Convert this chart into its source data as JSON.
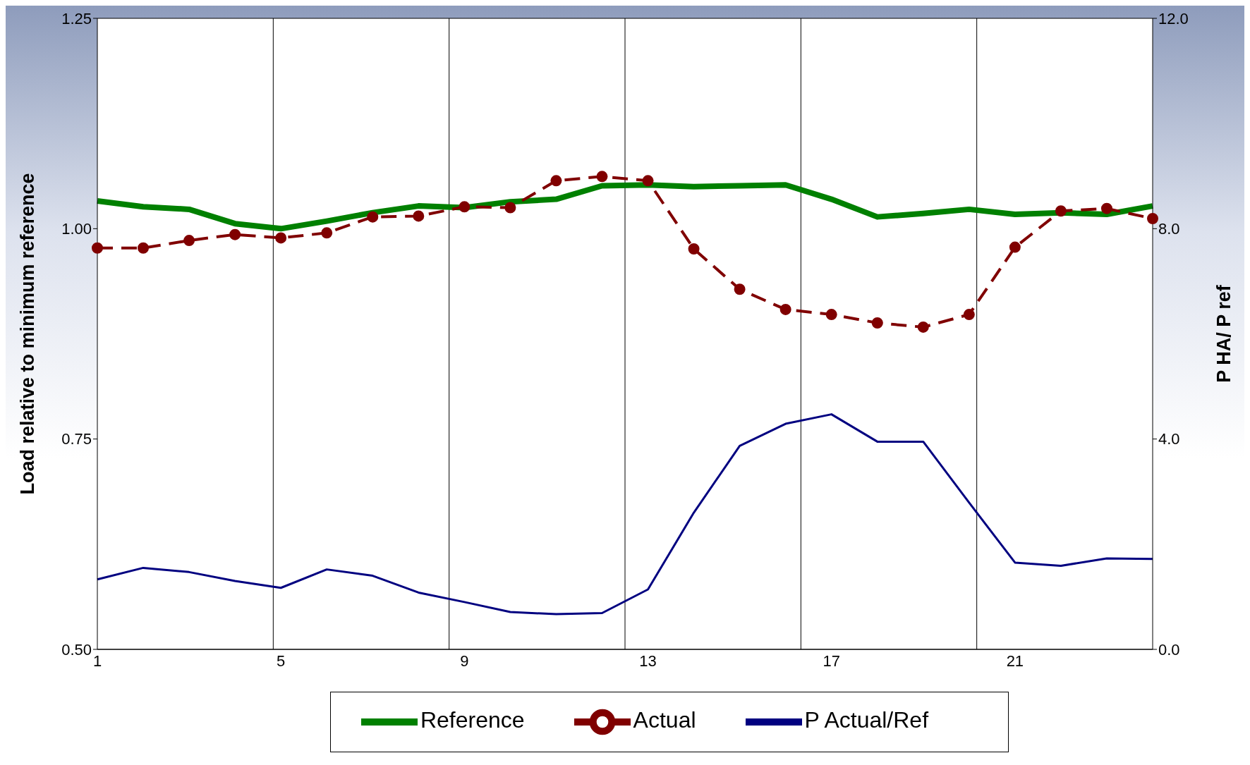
{
  "chart_data": {
    "type": "line",
    "ylabel": "Load relative to minimum reference",
    "y2label": "P HA/ P ref",
    "categories": [
      "1",
      null,
      null,
      null,
      "5",
      null,
      null,
      null,
      "9",
      null,
      null,
      null,
      "13",
      null,
      null,
      null,
      "17",
      null,
      null,
      null,
      "21",
      null,
      null,
      null
    ],
    "series": [
      {
        "name": "Reference",
        "color": "#008000",
        "marker": "none",
        "line_style": "solid",
        "values": [
          1.033,
          1.026,
          1.023,
          1.006,
          1.0,
          1.009,
          1.019,
          1.027,
          1.025,
          1.032,
          1.035,
          1.051,
          1.052,
          1.05,
          1.051,
          1.052,
          1.035,
          1.014,
          1.018,
          1.023,
          1.017,
          1.019,
          1.017,
          1.027
        ]
      },
      {
        "name": "Actual",
        "color": "#800000",
        "marker": "circle",
        "line_style": "dashed",
        "values": [
          0.977,
          0.977,
          0.986,
          0.993,
          0.989,
          0.995,
          1.014,
          1.015,
          1.026,
          1.025,
          1.057,
          1.062,
          1.057,
          0.976,
          0.928,
          0.904,
          0.898,
          0.888,
          0.883,
          0.898,
          0.978,
          1.021,
          1.024,
          1.012
        ]
      },
      {
        "name": "P Actual/Ref",
        "color": "#000080",
        "marker": "none",
        "line_style": "solid",
        "axis": "y2",
        "values": [
          1.33,
          1.55,
          1.47,
          1.3,
          1.17,
          1.52,
          1.4,
          1.08,
          0.9,
          0.71,
          0.67,
          0.69,
          1.14,
          2.6,
          3.87,
          4.29,
          4.47,
          3.95,
          3.95,
          2.79,
          1.65,
          1.59,
          1.73,
          1.72
        ]
      }
    ],
    "ylim": [
      0.5,
      1.25
    ],
    "yticks": [
      {
        "value": 0.5,
        "label": "0.50"
      },
      0.75,
      {
        "value": 1,
        "label": "1.00"
      },
      1.25
    ],
    "y2lim": [
      0,
      12
    ],
    "y2ticks": [
      {
        "value": 0,
        "label": "0.0"
      },
      {
        "value": 4,
        "label": "4.0"
      },
      {
        "value": 8,
        "label": "8.0"
      },
      {
        "value": 12,
        "label": "12.0"
      }
    ],
    "grid": true,
    "legend": "bottom"
  }
}
